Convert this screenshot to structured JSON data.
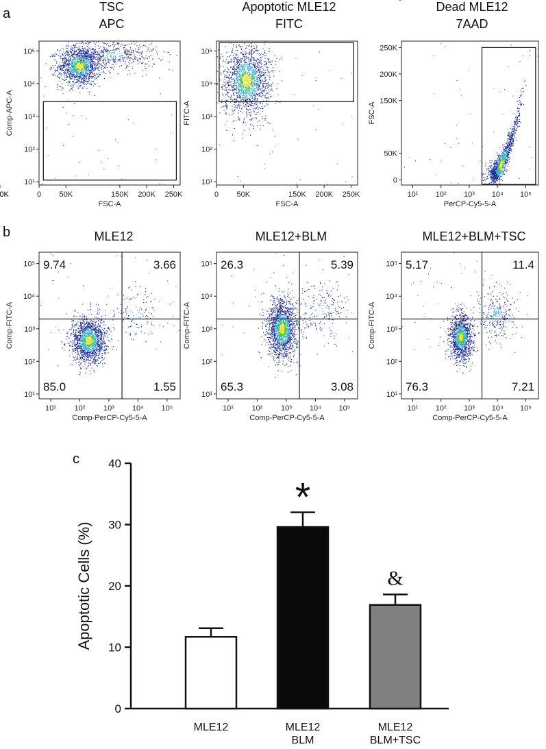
{
  "panels": {
    "a": "a",
    "b": "b",
    "c": "c"
  },
  "colors": {
    "dot_low": "#1a2a9c",
    "dot_mid": "#2fa8d8",
    "dot_high": "#3cc54a",
    "dot_peak": "#f0e020",
    "bar_blm": "#0a0a0a",
    "bar_tsc": "#808080"
  },
  "chart_data": [
    {
      "type": "scatter",
      "panel": "a",
      "title": "TSC",
      "subtitle": "APC",
      "xlabel": "FSC-A",
      "ylabel": "Comp-APC-A",
      "x_ticks": [
        "0",
        "50K",
        "100K",
        "150K",
        "200K",
        "250K"
      ],
      "y_ticks": [
        "10¹",
        "10²",
        "10³",
        "10⁴",
        "10⁵"
      ],
      "xlim": [
        0,
        262144
      ],
      "ylim_log10": [
        0.9,
        5.3
      ],
      "clusters": [
        {
          "x": 75000,
          "logy": 4.55,
          "sx": 20000,
          "sy": 0.3,
          "n": 1400
        },
        {
          "x": 140000,
          "logy": 4.9,
          "sx": 40000,
          "sy": 0.25,
          "n": 500
        }
      ],
      "gate": {
        "x1": 8000,
        "x2": 255000,
        "y1_log10": 1.05,
        "y2_log10": 3.45
      }
    },
    {
      "type": "scatter",
      "panel": "a",
      "title": "Apoptotic MLE12",
      "subtitle": "FITC",
      "xlabel": "FSC-A",
      "ylabel": "FITC-A",
      "x_ticks": [
        "0",
        "50K",
        "100K",
        "150K",
        "200K",
        "250K"
      ],
      "y_ticks": [
        "10¹",
        "10²",
        "10³",
        "10⁴",
        "10⁵"
      ],
      "xlim": [
        0,
        262144
      ],
      "ylim_log10": [
        0.9,
        5.3
      ],
      "clusters": [
        {
          "x": 55000,
          "logy": 4.1,
          "sx": 22000,
          "sy": 0.55,
          "n": 1700
        }
      ],
      "gate": {
        "x1": 5000,
        "x2": 255000,
        "y1_log10": 3.45,
        "y2_log10": 5.25
      }
    },
    {
      "type": "scatter",
      "panel": "a",
      "title": "Dead MLE12",
      "subtitle": "7AAD",
      "xlabel": "PerCP-Cy5-5-A",
      "ylabel": "FSC-A",
      "x_ticks": [
        "10¹",
        "10²",
        "10³",
        "10⁴",
        "10⁵"
      ],
      "y_ticks": [
        "0",
        "50K",
        "100K",
        "150K",
        "200K",
        "250K"
      ],
      "xlim_log10": [
        0.6,
        5.45
      ],
      "ylim": [
        -10000,
        262144
      ],
      "clusters": [
        {
          "logx": 4.1,
          "y": 20000,
          "sx": 0.35,
          "sy": 22000,
          "n": 1200,
          "trend": true
        }
      ],
      "gate": {
        "x1_log10": 3.45,
        "x2_log10": 5.35,
        "y1": -9000,
        "y2": 250000
      }
    },
    {
      "type": "scatter",
      "panel": "b",
      "title": "MLE12",
      "xlabel": "Comp-PerCP-Cy5-5-A",
      "ylabel": "Comp-FITC-A",
      "x_ticks": [
        "10¹",
        "10²",
        "10³",
        "10⁴",
        "10⁵"
      ],
      "y_ticks": [
        "10¹",
        "10²",
        "10³",
        "10⁴",
        "10⁵"
      ],
      "xlim_log10": [
        0.6,
        5.45
      ],
      "ylim_log10": [
        0.85,
        5.35
      ],
      "quadrant_gate": {
        "x_log10": 3.45,
        "y_log10": 3.3
      },
      "quadrants": {
        "ul": "9.74",
        "ur": "3.66",
        "ll": "85.0",
        "lr": "1.55"
      },
      "clusters": [
        {
          "logx": 2.3,
          "logy": 2.65,
          "sx": 0.3,
          "sy": 0.35,
          "n": 1600
        },
        {
          "logx": 3.9,
          "logy": 3.5,
          "sx": 0.4,
          "sy": 0.4,
          "n": 120
        }
      ]
    },
    {
      "type": "scatter",
      "panel": "b",
      "title": "MLE12+BLM",
      "xlabel": "Comp-PerCP-Cy5-5-A",
      "ylabel": "Comp-FITC-A",
      "x_ticks": [
        "10¹",
        "10²",
        "10³",
        "10⁴",
        "10⁵"
      ],
      "y_ticks": [
        "10¹",
        "10²",
        "10³",
        "10⁴",
        "10⁵"
      ],
      "xlim_log10": [
        0.6,
        5.45
      ],
      "ylim_log10": [
        0.85,
        5.35
      ],
      "quadrant_gate": {
        "x_log10": 3.45,
        "y_log10": 3.3
      },
      "quadrants": {
        "ul": "26.3",
        "ur": "5.39",
        "ll": "65.3",
        "lr": "3.08"
      },
      "clusters": [
        {
          "logx": 2.85,
          "logy": 3.0,
          "sx": 0.25,
          "sy": 0.45,
          "n": 1700
        },
        {
          "logx": 4.2,
          "logy": 3.6,
          "sx": 0.45,
          "sy": 0.45,
          "n": 200
        }
      ]
    },
    {
      "type": "scatter",
      "panel": "b",
      "title": "MLE12+BLM+TSC",
      "xlabel": "Comp-PerCP-Cy5-5-A",
      "ylabel": "Comp-FITC-A",
      "x_ticks": [
        "10¹",
        "10²",
        "10³",
        "10⁴",
        "10⁵"
      ],
      "y_ticks": [
        "10¹",
        "10²",
        "10³",
        "10⁴",
        "10⁵"
      ],
      "xlim_log10": [
        0.6,
        5.45
      ],
      "ylim_log10": [
        0.85,
        5.35
      ],
      "quadrant_gate": {
        "x_log10": 3.45,
        "y_log10": 3.3
      },
      "quadrants": {
        "ul": "5.17",
        "ur": "11.4",
        "ll": "76.3",
        "lr": "7.21"
      },
      "clusters": [
        {
          "logx": 2.7,
          "logy": 2.75,
          "sx": 0.2,
          "sy": 0.35,
          "n": 1300
        },
        {
          "logx": 3.95,
          "logy": 3.45,
          "sx": 0.35,
          "sy": 0.4,
          "n": 280
        }
      ]
    },
    {
      "type": "bar",
      "panel": "c",
      "ylabel": "Apoptotic Cells (%)",
      "ylim": [
        0,
        40
      ],
      "yticks": [
        "0",
        "10",
        "20",
        "30",
        "40"
      ],
      "categories": [
        [
          "MLE12"
        ],
        [
          "MLE12",
          "BLM"
        ],
        [
          "MLE12",
          "BLM+TSC"
        ]
      ],
      "values": [
        11.7,
        29.6,
        16.9
      ],
      "errors": [
        1.4,
        2.4,
        1.7
      ],
      "fills": [
        "#ffffff",
        "#0a0a0a",
        "#808080"
      ],
      "annotations": [
        "",
        "*",
        "&"
      ]
    }
  ]
}
